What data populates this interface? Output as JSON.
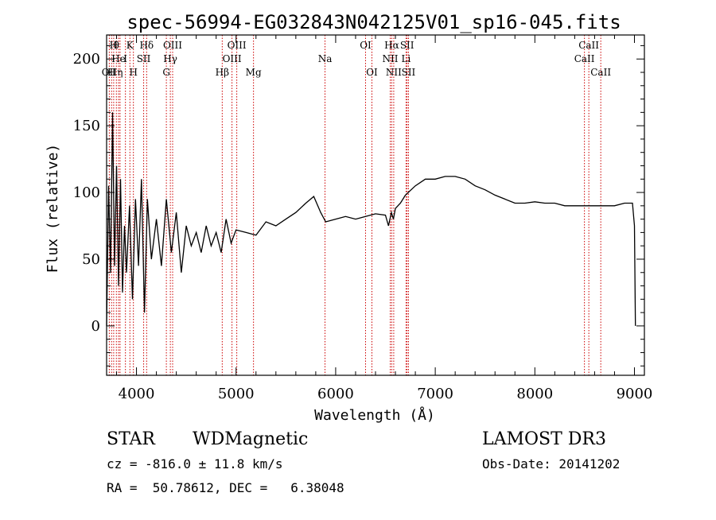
{
  "chart_data": {
    "type": "line",
    "title": "spec-56994-EG032843N042125V01_sp16-045.fits",
    "xlabel": "Wavelength (Å)",
    "ylabel": "Flux (relative)",
    "xlim": [
      3700,
      9100
    ],
    "ylim": [
      -37,
      218
    ],
    "xticks": [
      4000,
      5000,
      6000,
      7000,
      8000,
      9000
    ],
    "yticks": [
      0,
      50,
      100,
      150,
      200
    ],
    "series": [
      {
        "name": "spectrum",
        "x": [
          3700,
          3720,
          3740,
          3760,
          3780,
          3800,
          3820,
          3840,
          3860,
          3880,
          3900,
          3930,
          3960,
          3990,
          4020,
          4050,
          4080,
          4110,
          4150,
          4200,
          4250,
          4300,
          4350,
          4400,
          4450,
          4500,
          4550,
          4600,
          4650,
          4700,
          4750,
          4800,
          4850,
          4900,
          4950,
          5000,
          5100,
          5200,
          5300,
          5400,
          5500,
          5600,
          5700,
          5780,
          5850,
          5900,
          6000,
          6100,
          6200,
          6300,
          6400,
          6500,
          6530,
          6560,
          6580,
          6600,
          6650,
          6700,
          6800,
          6900,
          7000,
          7100,
          7200,
          7300,
          7400,
          7500,
          7600,
          7700,
          7800,
          7900,
          8000,
          8100,
          8200,
          8300,
          8400,
          8500,
          8600,
          8700,
          8800,
          8900,
          8980,
          9000,
          9010
        ],
        "y": [
          0,
          105,
          40,
          160,
          45,
          120,
          30,
          110,
          25,
          75,
          40,
          90,
          20,
          95,
          45,
          110,
          10,
          95,
          50,
          80,
          45,
          95,
          55,
          85,
          40,
          75,
          60,
          70,
          55,
          75,
          60,
          70,
          55,
          80,
          62,
          72,
          70,
          68,
          78,
          75,
          80,
          85,
          92,
          97,
          85,
          78,
          80,
          82,
          80,
          82,
          84,
          83,
          75,
          85,
          80,
          88,
          92,
          98,
          105,
          110,
          110,
          112,
          112,
          110,
          105,
          102,
          98,
          95,
          92,
          92,
          93,
          92,
          92,
          90,
          90,
          90,
          90,
          90,
          90,
          92,
          92,
          75,
          0
        ]
      }
    ],
    "line_markers": [
      {
        "wavelength": 3727,
        "label": "OII",
        "row": 3
      },
      {
        "wavelength": 3750,
        "label": "H",
        "row": 3
      },
      {
        "wavelength": 3771,
        "label": "H",
        "row": 1
      },
      {
        "wavelength": 3798,
        "label": "θ",
        "row": 1
      },
      {
        "wavelength": 3820,
        "label": "He",
        "row": 2
      },
      {
        "wavelength": 3835,
        "label": "η",
        "row": 3
      },
      {
        "wavelength": 3889,
        "label": "I",
        "row": 2
      },
      {
        "wavelength": 3934,
        "label": "K",
        "row": 1
      },
      {
        "wavelength": 3969,
        "label": "H",
        "row": 3
      },
      {
        "wavelength": 4072,
        "label": "SII",
        "row": 2
      },
      {
        "wavelength": 4102,
        "label": "Hδ",
        "row": 1
      },
      {
        "wavelength": 4300,
        "label": "G",
        "row": 3
      },
      {
        "wavelength": 4340,
        "label": "Hγ",
        "row": 2
      },
      {
        "wavelength": 4363,
        "label": "OIII",
        "row": 1
      },
      {
        "wavelength": 4861,
        "label": "Hβ",
        "row": 3
      },
      {
        "wavelength": 4959,
        "label": "OIII",
        "row": 2
      },
      {
        "wavelength": 5007,
        "label": "OIII",
        "row": 1
      },
      {
        "wavelength": 5175,
        "label": "Mg",
        "row": 3
      },
      {
        "wavelength": 5893,
        "label": "Na",
        "row": 2
      },
      {
        "wavelength": 6300,
        "label": "OI",
        "row": 1
      },
      {
        "wavelength": 6364,
        "label": "OI",
        "row": 3
      },
      {
        "wavelength": 6548,
        "label": "NII",
        "row": 2
      },
      {
        "wavelength": 6563,
        "label": "Hα",
        "row": 1
      },
      {
        "wavelength": 6583,
        "label": "NII",
        "row": 3
      },
      {
        "wavelength": 6707,
        "label": "Li",
        "row": 2
      },
      {
        "wavelength": 6717,
        "label": "SII",
        "row": 1
      },
      {
        "wavelength": 6731,
        "label": "SII",
        "row": 3
      },
      {
        "wavelength": 8498,
        "label": "CaII",
        "row": 2
      },
      {
        "wavelength": 8542,
        "label": "CaII",
        "row": 1
      },
      {
        "wavelength": 8662,
        "label": "CaII",
        "row": 3
      }
    ],
    "marker_color": "#cc0000"
  },
  "footer": {
    "class_label": "STAR",
    "subclass_label": "WDMagnetic",
    "survey_label": "LAMOST DR3",
    "cz_text": "cz = -816.0 ± 11.8 km/s",
    "obs_date_text": "Obs-Date: 20141202",
    "coords_text": "RA =  50.78612, DEC =   6.38048"
  }
}
